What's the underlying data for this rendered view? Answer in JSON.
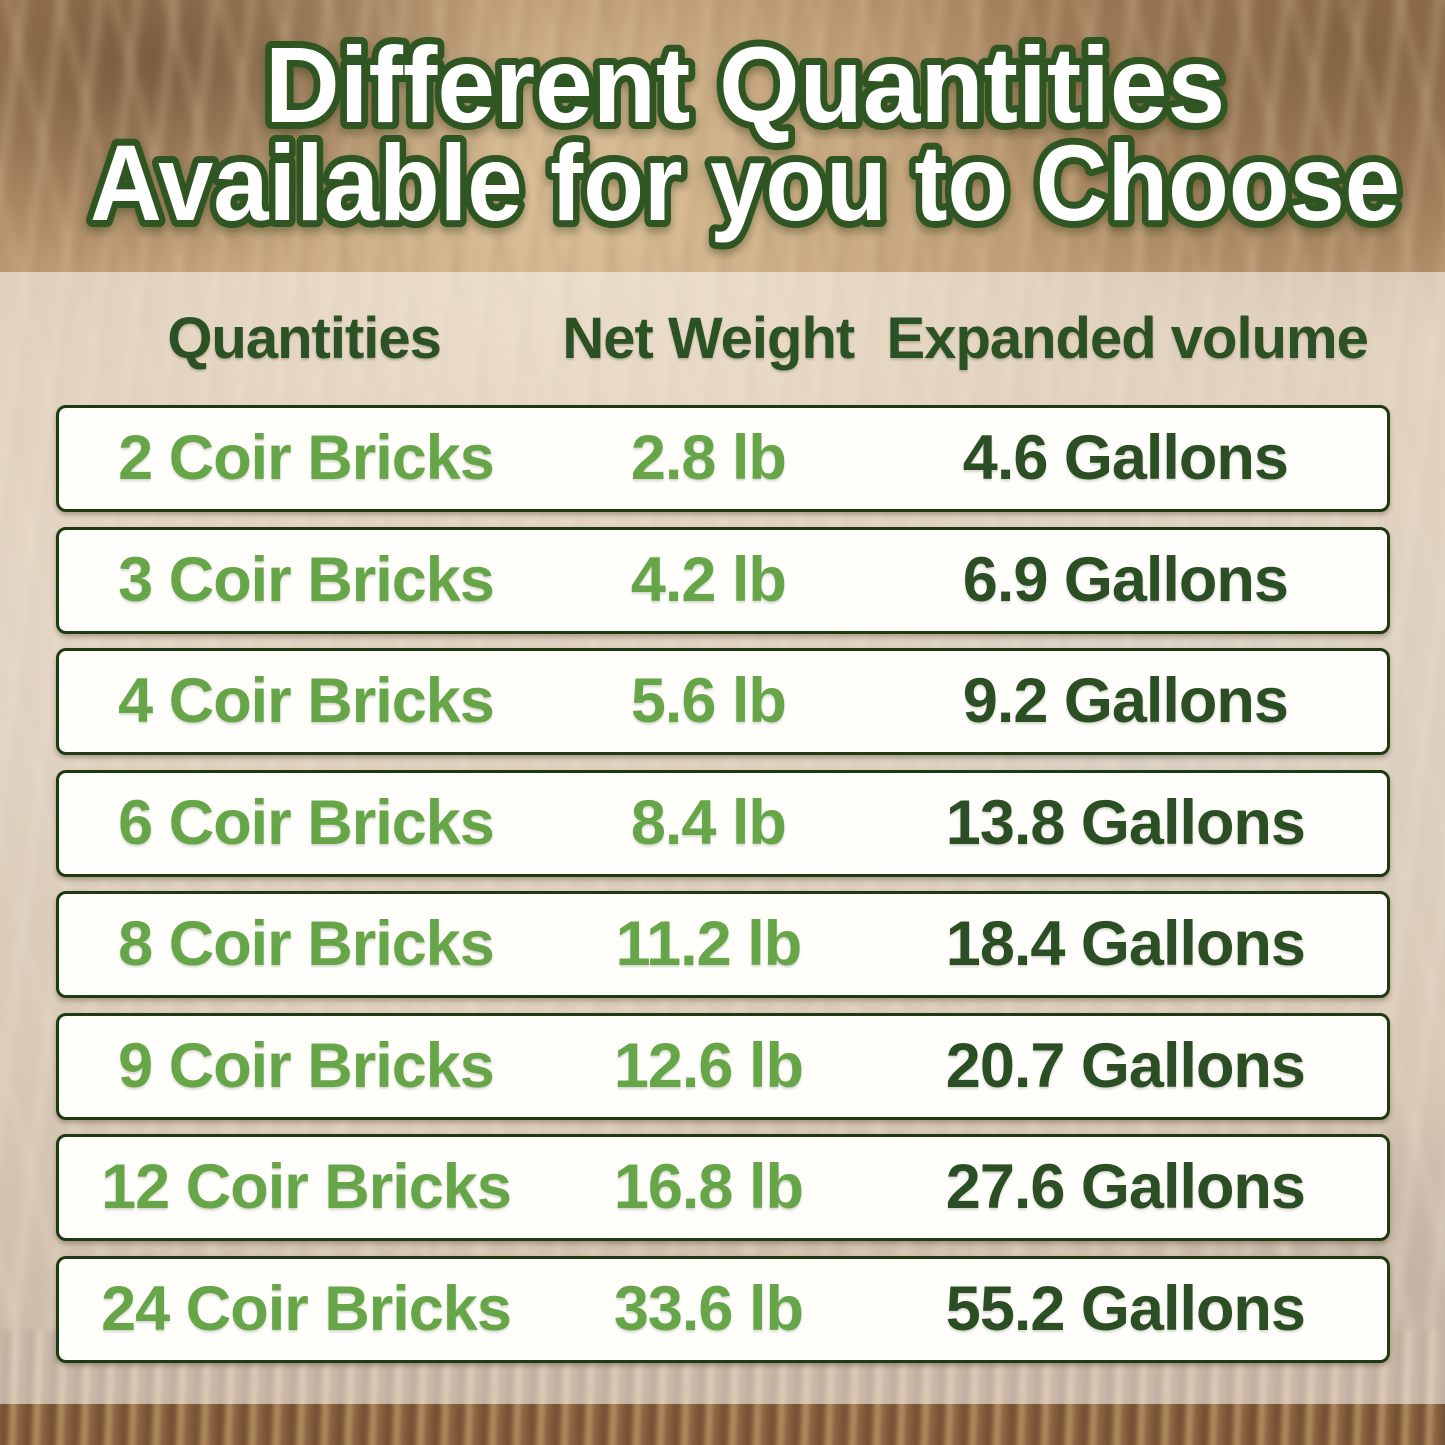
{
  "title": {
    "line1": "Different Quantities",
    "line2": "Available for you to Choose"
  },
  "colors": {
    "title_fill": "#ffffff",
    "title_outline": "#2d5520",
    "header_green": "#2c5124",
    "light_green": "#67a549",
    "dark_green": "#2c4e24",
    "row_border": "#1e3a10",
    "row_background": "#fffefb"
  },
  "table": {
    "headers": [
      "Quantities",
      "Net Weight",
      "Expanded volume"
    ],
    "rows": [
      {
        "quantity": "2 Coir Bricks",
        "net_weight": "2.8 lb",
        "expanded_volume": "4.6 Gallons"
      },
      {
        "quantity": "3 Coir Bricks",
        "net_weight": "4.2 lb",
        "expanded_volume": "6.9 Gallons"
      },
      {
        "quantity": "4 Coir Bricks",
        "net_weight": "5.6 lb",
        "expanded_volume": "9.2 Gallons"
      },
      {
        "quantity": "6 Coir Bricks",
        "net_weight": "8.4 lb",
        "expanded_volume": "13.8 Gallons"
      },
      {
        "quantity": "8 Coir Bricks",
        "net_weight": "11.2 lb",
        "expanded_volume": "18.4 Gallons"
      },
      {
        "quantity": "9 Coir Bricks",
        "net_weight": "12.6 lb",
        "expanded_volume": "20.7 Gallons"
      },
      {
        "quantity": "12 Coir Bricks",
        "net_weight": "16.8 lb",
        "expanded_volume": "27.6 Gallons"
      },
      {
        "quantity": "24 Coir Bricks",
        "net_weight": "33.6 lb",
        "expanded_volume": "55.2 Gallons"
      }
    ]
  },
  "chart_data": {
    "type": "table",
    "title": "Different Quantities Available for you to Choose",
    "columns": [
      "Quantities",
      "Net Weight",
      "Expanded volume"
    ],
    "rows": [
      [
        "2 Coir Bricks",
        "2.8 lb",
        "4.6 Gallons"
      ],
      [
        "3 Coir Bricks",
        "4.2 lb",
        "6.9 Gallons"
      ],
      [
        "4 Coir Bricks",
        "5.6 lb",
        "9.2 Gallons"
      ],
      [
        "6 Coir Bricks",
        "8.4 lb",
        "13.8 Gallons"
      ],
      [
        "8 Coir Bricks",
        "11.2 lb",
        "18.4 Gallons"
      ],
      [
        "9 Coir Bricks",
        "12.6 lb",
        "20.7 Gallons"
      ],
      [
        "12 Coir Bricks",
        "16.8 lb",
        "27.6 Gallons"
      ],
      [
        "24 Coir Bricks",
        "33.6 lb",
        "55.2 Gallons"
      ]
    ],
    "bricks_count": [
      2,
      3,
      4,
      6,
      8,
      9,
      12,
      24
    ],
    "net_weight_lb": [
      2.8,
      4.2,
      5.6,
      8.4,
      11.2,
      12.6,
      16.8,
      33.6
    ],
    "expanded_volume_gallons": [
      4.6,
      6.9,
      9.2,
      13.8,
      18.4,
      20.7,
      27.6,
      55.2
    ]
  }
}
